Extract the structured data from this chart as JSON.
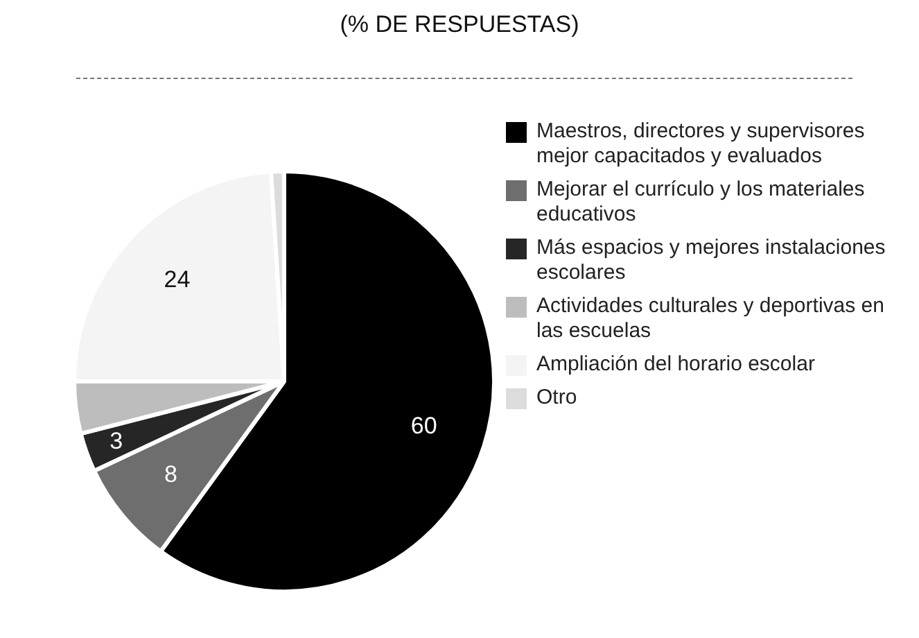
{
  "chart_data": {
    "type": "pie",
    "title": "(% DE RESPUESTAS)",
    "categories": [
      "Maestros, directores y supervisores mejor capacitados y evaluados",
      "Mejorar el currículo y los materiales educativos",
      "Más espacios y mejores instalaciones escolares",
      "Actividades culturales y deportivas en las escuelas",
      "Ampliación del horario escolar",
      "Otro"
    ],
    "values": [
      60,
      8,
      3,
      4,
      24,
      1
    ],
    "colors": [
      "#000000",
      "#6e6e6e",
      "#262626",
      "#bdbdbd",
      "#f4f4f4",
      "#dcdcdc"
    ],
    "value_labels": [
      "60",
      "8",
      "3",
      null,
      "24",
      null
    ],
    "legend": "right"
  }
}
